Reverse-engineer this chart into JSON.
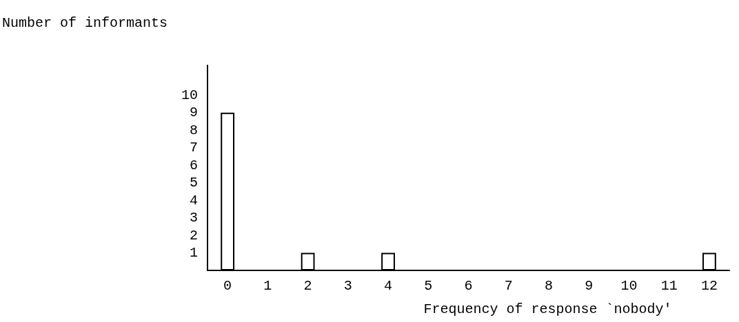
{
  "chart_data": {
    "type": "bar",
    "xlabel": "Frequency of response `nobody'",
    "ylabel": "Number of informants",
    "categories": [
      "0",
      "1",
      "2",
      "3",
      "4",
      "5",
      "6",
      "7",
      "8",
      "9",
      "10",
      "11",
      "12"
    ],
    "values": [
      9,
      0,
      1,
      0,
      1,
      0,
      0,
      0,
      0,
      0,
      0,
      0,
      1
    ],
    "color": "#ffffff",
    "ylim": [
      0,
      11.7
    ],
    "yticks": [
      1,
      2,
      3,
      4,
      5,
      6,
      7,
      8,
      9,
      10
    ],
    "grid": false
  }
}
